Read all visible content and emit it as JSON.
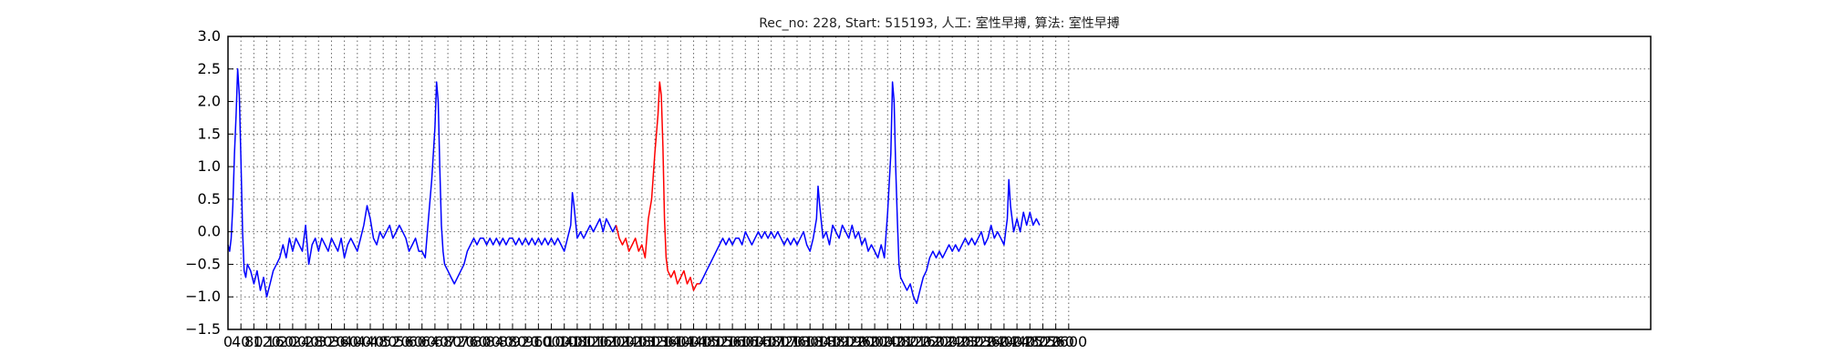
{
  "chart_data": {
    "type": "line",
    "title": "Rec_no: 228, Start: 515193, 人工: 室性早搏, 算法: 室性早搏",
    "xlabel": "",
    "ylabel": "",
    "xlim": [
      0,
      4400
    ],
    "ylim": [
      -1.5,
      3.0
    ],
    "grid": true,
    "y_ticks": [
      "3.0",
      "2.5",
      "2.0",
      "1.5",
      "1.0",
      "0.5",
      "0.0",
      "−0.5",
      "−1.0",
      "−1.5"
    ],
    "x_ticks": [
      "0",
      "40",
      "80",
      "120",
      "160",
      "200",
      "240",
      "280",
      "320",
      "360",
      "400",
      "440",
      "480",
      "520",
      "560",
      "600",
      "640",
      "680",
      "720",
      "760",
      "800",
      "840",
      "880",
      "920",
      "960",
      "1000",
      "1040",
      "1080",
      "1120",
      "1160",
      "1200",
      "1240",
      "1280",
      "1320",
      "1360",
      "1400",
      "1440",
      "1480",
      "1520",
      "1560",
      "1600",
      "1640",
      "1680",
      "1720",
      "1760",
      "1800",
      "1840",
      "1880",
      "1920",
      "1960",
      "2000",
      "2040",
      "2080",
      "2120",
      "2160",
      "2200",
      "2240",
      "2280",
      "2320",
      "2360",
      "2400",
      "2440",
      "2480",
      "2520",
      "2560",
      "2600"
    ],
    "series": [
      {
        "color": "#0000ff",
        "points": [
          [
            0,
            -0.2
          ],
          [
            5,
            -0.3
          ],
          [
            10,
            -0.1
          ],
          [
            15,
            0.4
          ],
          [
            20,
            1.2
          ],
          [
            25,
            1.8
          ],
          [
            30,
            2.5
          ],
          [
            35,
            2.1
          ],
          [
            40,
            1.1
          ],
          [
            45,
            0.0
          ],
          [
            50,
            -0.6
          ],
          [
            55,
            -0.7
          ],
          [
            60,
            -0.5
          ],
          [
            70,
            -0.6
          ],
          [
            80,
            -0.8
          ],
          [
            90,
            -0.6
          ],
          [
            100,
            -0.9
          ],
          [
            110,
            -0.7
          ],
          [
            120,
            -1.0
          ],
          [
            130,
            -0.8
          ],
          [
            140,
            -0.6
          ],
          [
            150,
            -0.5
          ],
          [
            160,
            -0.4
          ],
          [
            170,
            -0.2
          ],
          [
            180,
            -0.4
          ],
          [
            190,
            -0.1
          ],
          [
            200,
            -0.3
          ],
          [
            210,
            -0.1
          ],
          [
            220,
            -0.2
          ],
          [
            230,
            -0.3
          ],
          [
            240,
            0.1
          ],
          [
            250,
            -0.5
          ],
          [
            260,
            -0.2
          ],
          [
            270,
            -0.1
          ],
          [
            280,
            -0.3
          ],
          [
            290,
            -0.1
          ],
          [
            300,
            -0.2
          ],
          [
            310,
            -0.3
          ],
          [
            320,
            -0.1
          ],
          [
            330,
            -0.2
          ],
          [
            340,
            -0.3
          ],
          [
            350,
            -0.1
          ],
          [
            360,
            -0.4
          ],
          [
            370,
            -0.2
          ],
          [
            380,
            -0.1
          ],
          [
            390,
            -0.2
          ],
          [
            400,
            -0.3
          ],
          [
            410,
            -0.1
          ],
          [
            420,
            0.1
          ],
          [
            430,
            0.4
          ],
          [
            440,
            0.2
          ],
          [
            450,
            -0.1
          ],
          [
            460,
            -0.2
          ],
          [
            470,
            0.0
          ],
          [
            480,
            -0.1
          ],
          [
            490,
            0.0
          ],
          [
            500,
            0.1
          ],
          [
            510,
            -0.1
          ],
          [
            520,
            0.0
          ],
          [
            530,
            0.1
          ],
          [
            540,
            0.0
          ],
          [
            550,
            -0.1
          ],
          [
            560,
            -0.3
          ],
          [
            570,
            -0.2
          ],
          [
            580,
            -0.1
          ],
          [
            590,
            -0.3
          ],
          [
            600,
            -0.3
          ],
          [
            610,
            -0.4
          ],
          [
            620,
            0.2
          ],
          [
            630,
            0.8
          ],
          [
            640,
            1.6
          ],
          [
            645,
            2.3
          ],
          [
            650,
            2.0
          ],
          [
            655,
            1.0
          ],
          [
            660,
            0.1
          ],
          [
            665,
            -0.3
          ],
          [
            670,
            -0.5
          ],
          [
            680,
            -0.6
          ],
          [
            690,
            -0.7
          ],
          [
            700,
            -0.8
          ],
          [
            710,
            -0.7
          ],
          [
            720,
            -0.6
          ],
          [
            730,
            -0.5
          ],
          [
            740,
            -0.3
          ],
          [
            750,
            -0.2
          ],
          [
            760,
            -0.1
          ],
          [
            770,
            -0.2
          ],
          [
            780,
            -0.1
          ],
          [
            790,
            -0.1
          ],
          [
            800,
            -0.2
          ],
          [
            810,
            -0.1
          ],
          [
            820,
            -0.2
          ],
          [
            830,
            -0.1
          ],
          [
            840,
            -0.2
          ],
          [
            850,
            -0.1
          ],
          [
            860,
            -0.2
          ],
          [
            870,
            -0.1
          ],
          [
            880,
            -0.1
          ],
          [
            890,
            -0.2
          ],
          [
            900,
            -0.1
          ],
          [
            910,
            -0.2
          ],
          [
            920,
            -0.1
          ],
          [
            930,
            -0.2
          ],
          [
            940,
            -0.1
          ],
          [
            950,
            -0.2
          ],
          [
            960,
            -0.1
          ],
          [
            970,
            -0.2
          ],
          [
            980,
            -0.1
          ],
          [
            990,
            -0.2
          ],
          [
            1000,
            -0.1
          ],
          [
            1010,
            -0.2
          ],
          [
            1020,
            -0.1
          ],
          [
            1030,
            -0.2
          ],
          [
            1040,
            -0.3
          ],
          [
            1050,
            -0.1
          ],
          [
            1060,
            0.1
          ],
          [
            1065,
            0.6
          ],
          [
            1070,
            0.4
          ],
          [
            1080,
            -0.1
          ],
          [
            1090,
            0.0
          ],
          [
            1100,
            -0.1
          ],
          [
            1110,
            0.0
          ],
          [
            1120,
            0.1
          ],
          [
            1130,
            0.0
          ],
          [
            1140,
            0.1
          ],
          [
            1150,
            0.2
          ],
          [
            1160,
            0.0
          ],
          [
            1170,
            0.2
          ],
          [
            1180,
            0.1
          ],
          [
            1190,
            0.0
          ],
          [
            1200,
            0.1
          ]
        ]
      },
      {
        "color": "#ff0000",
        "points": [
          [
            1200,
            0.1
          ],
          [
            1210,
            -0.1
          ],
          [
            1220,
            -0.2
          ],
          [
            1230,
            -0.1
          ],
          [
            1240,
            -0.3
          ],
          [
            1250,
            -0.2
          ],
          [
            1260,
            -0.1
          ],
          [
            1270,
            -0.3
          ],
          [
            1280,
            -0.2
          ],
          [
            1290,
            -0.4
          ],
          [
            1300,
            0.2
          ],
          [
            1310,
            0.5
          ],
          [
            1320,
            1.2
          ],
          [
            1330,
            1.8
          ],
          [
            1335,
            2.3
          ],
          [
            1340,
            2.1
          ],
          [
            1345,
            1.3
          ],
          [
            1350,
            0.2
          ],
          [
            1355,
            -0.4
          ],
          [
            1360,
            -0.6
          ],
          [
            1370,
            -0.7
          ],
          [
            1380,
            -0.6
          ],
          [
            1390,
            -0.8
          ],
          [
            1400,
            -0.7
          ],
          [
            1410,
            -0.6
          ],
          [
            1420,
            -0.8
          ],
          [
            1430,
            -0.7
          ],
          [
            1440,
            -0.9
          ],
          [
            1450,
            -0.8
          ],
          [
            1460,
            -0.8
          ]
        ]
      },
      {
        "color": "#0000ff",
        "points": [
          [
            1460,
            -0.8
          ],
          [
            1470,
            -0.7
          ],
          [
            1480,
            -0.6
          ],
          [
            1490,
            -0.5
          ],
          [
            1500,
            -0.4
          ],
          [
            1510,
            -0.3
          ],
          [
            1520,
            -0.2
          ],
          [
            1530,
            -0.1
          ],
          [
            1540,
            -0.2
          ],
          [
            1550,
            -0.1
          ],
          [
            1560,
            -0.2
          ],
          [
            1570,
            -0.1
          ],
          [
            1580,
            -0.1
          ],
          [
            1590,
            -0.2
          ],
          [
            1600,
            0.0
          ],
          [
            1610,
            -0.1
          ],
          [
            1620,
            -0.2
          ],
          [
            1630,
            -0.1
          ],
          [
            1640,
            0.0
          ],
          [
            1650,
            -0.1
          ],
          [
            1660,
            0.0
          ],
          [
            1670,
            -0.1
          ],
          [
            1680,
            0.0
          ],
          [
            1690,
            -0.1
          ],
          [
            1700,
            0.0
          ],
          [
            1710,
            -0.1
          ],
          [
            1720,
            -0.2
          ],
          [
            1730,
            -0.1
          ],
          [
            1740,
            -0.2
          ],
          [
            1750,
            -0.1
          ],
          [
            1760,
            -0.2
          ],
          [
            1770,
            -0.1
          ],
          [
            1780,
            0.0
          ],
          [
            1790,
            -0.2
          ],
          [
            1800,
            -0.3
          ],
          [
            1810,
            -0.1
          ],
          [
            1820,
            0.2
          ],
          [
            1825,
            0.7
          ],
          [
            1830,
            0.4
          ],
          [
            1840,
            -0.1
          ],
          [
            1850,
            0.0
          ],
          [
            1860,
            -0.2
          ],
          [
            1870,
            0.1
          ],
          [
            1880,
            0.0
          ],
          [
            1890,
            -0.1
          ],
          [
            1900,
            0.1
          ],
          [
            1910,
            0.0
          ],
          [
            1920,
            -0.1
          ],
          [
            1930,
            0.1
          ],
          [
            1940,
            -0.1
          ],
          [
            1950,
            0.0
          ],
          [
            1960,
            -0.2
          ],
          [
            1970,
            -0.1
          ],
          [
            1980,
            -0.3
          ],
          [
            1990,
            -0.2
          ],
          [
            2000,
            -0.3
          ],
          [
            2010,
            -0.4
          ],
          [
            2020,
            -0.2
          ],
          [
            2030,
            -0.4
          ],
          [
            2040,
            0.3
          ],
          [
            2050,
            1.2
          ],
          [
            2055,
            2.3
          ],
          [
            2060,
            2.0
          ],
          [
            2065,
            1.0
          ],
          [
            2070,
            0.2
          ],
          [
            2075,
            -0.5
          ],
          [
            2080,
            -0.7
          ],
          [
            2090,
            -0.8
          ],
          [
            2100,
            -0.9
          ],
          [
            2110,
            -0.8
          ],
          [
            2120,
            -1.0
          ],
          [
            2130,
            -1.1
          ],
          [
            2140,
            -0.9
          ],
          [
            2150,
            -0.7
          ],
          [
            2160,
            -0.6
          ],
          [
            2170,
            -0.4
          ],
          [
            2180,
            -0.3
          ],
          [
            2190,
            -0.4
          ],
          [
            2200,
            -0.3
          ],
          [
            2210,
            -0.4
          ],
          [
            2220,
            -0.3
          ],
          [
            2230,
            -0.2
          ],
          [
            2240,
            -0.3
          ],
          [
            2250,
            -0.2
          ],
          [
            2260,
            -0.3
          ],
          [
            2270,
            -0.2
          ],
          [
            2280,
            -0.1
          ],
          [
            2290,
            -0.2
          ],
          [
            2300,
            -0.1
          ],
          [
            2310,
            -0.2
          ],
          [
            2320,
            -0.1
          ],
          [
            2330,
            0.0
          ],
          [
            2340,
            -0.2
          ],
          [
            2350,
            -0.1
          ],
          [
            2360,
            0.1
          ],
          [
            2370,
            -0.1
          ],
          [
            2380,
            0.0
          ],
          [
            2390,
            -0.1
          ],
          [
            2400,
            -0.2
          ],
          [
            2410,
            0.2
          ],
          [
            2415,
            0.8
          ],
          [
            2420,
            0.4
          ],
          [
            2430,
            0.0
          ],
          [
            2440,
            0.2
          ],
          [
            2450,
            0.0
          ],
          [
            2460,
            0.3
          ],
          [
            2470,
            0.1
          ],
          [
            2480,
            0.3
          ],
          [
            2490,
            0.1
          ],
          [
            2500,
            0.2
          ],
          [
            2510,
            0.1
          ]
        ]
      }
    ]
  }
}
